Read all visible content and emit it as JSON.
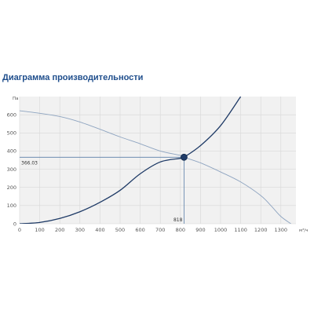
{
  "title": "Диаграмма производительности",
  "colors": {
    "accent": "#1f4e8c",
    "fan_curve": "#8ea4c0",
    "system_curve": "#1e3a66",
    "grid": "#d8d8d8",
    "plot_bg": "#f1f1f1"
  },
  "chart_data": {
    "type": "line",
    "title": "Диаграмма производительности",
    "xlabel": "м³/ч",
    "ylabel": "Па",
    "xlim": [
      0,
      1375
    ],
    "ylim": [
      0,
      700
    ],
    "x_ticks": [
      0,
      100,
      200,
      300,
      400,
      500,
      600,
      700,
      800,
      900,
      1000,
      1100,
      1200,
      1300
    ],
    "y_ticks": [
      0,
      100,
      200,
      300,
      400,
      500,
      600
    ],
    "grid": true,
    "series": [
      {
        "x": [
          0,
          100,
          200,
          300,
          400,
          500,
          600,
          700,
          800,
          818,
          900,
          1000,
          1100,
          1200,
          1250,
          1300,
          1350
        ],
        "y": [
          622,
          608,
          590,
          560,
          520,
          478,
          440,
          400,
          376,
          366,
          335,
          285,
          230,
          155,
          100,
          40,
          0
        ]
      },
      {
        "x": [
          0,
          100,
          200,
          300,
          400,
          500,
          600,
          700,
          800,
          818,
          900,
          1000,
          1100
        ],
        "y": [
          0,
          7,
          29,
          66,
          118,
          184,
          275,
          340,
          360,
          366,
          430,
          540,
          700
        ]
      }
    ],
    "operating_point": {
      "x": 818,
      "y": 366.03,
      "x_label": "818",
      "y_label": "366.03"
    }
  }
}
